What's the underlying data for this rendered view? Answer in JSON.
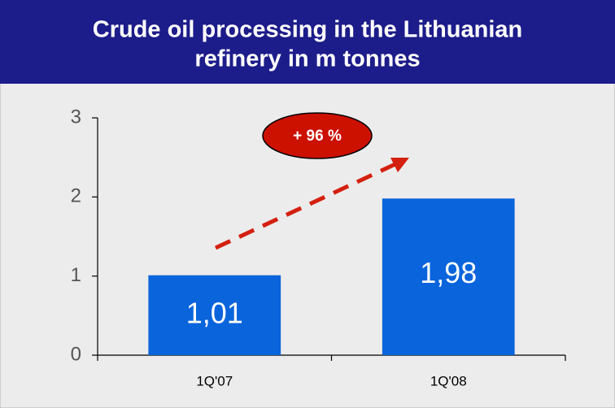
{
  "chart_data": {
    "type": "bar",
    "title_lines": [
      "Crude oil processing in the Lithuanian",
      "refinery in m tonnes"
    ],
    "categories": [
      "1Q'07",
      "1Q'08"
    ],
    "values": [
      1.01,
      1.98
    ],
    "value_labels": [
      "1,01",
      "1,98"
    ],
    "color": "#0a64dc",
    "ylim": [
      0,
      3
    ],
    "yticks": [
      0,
      1,
      2,
      3
    ],
    "annotation": "+ 96 %"
  }
}
